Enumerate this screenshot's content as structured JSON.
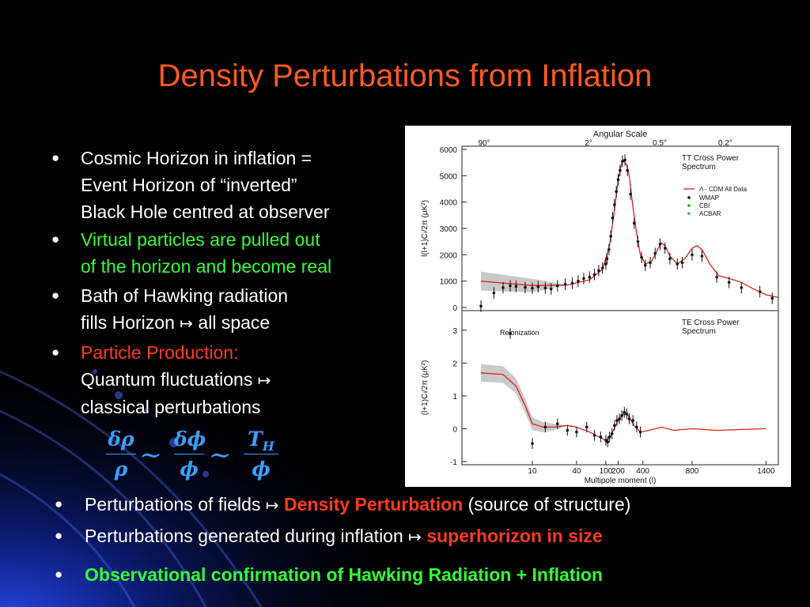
{
  "slide": {
    "title": "Density Perturbations from Inflation",
    "bullets": [
      {
        "lines": [
          "Cosmic Horizon in inflation =",
          "Event Horizon of  “inverted”",
          "Black Hole centred at observer"
        ],
        "color": "#ffffff"
      },
      {
        "lines": [
          "Virtual particles are pulled out",
          "of the horizon and become real"
        ],
        "color": "#33ff33"
      },
      {
        "lines": [
          "Bath of Hawking radiation",
          "fills Horizon",
          "all space"
        ],
        "color": "#ffffff"
      },
      {
        "line1": "Particle Production:",
        "line2": "Quantum fluctuations",
        "line3": "classical perturbations",
        "color1": "#ff3b1f",
        "color2": "#ffffff"
      }
    ],
    "arrow_symbol": "↦",
    "bullet_symbol": "●",
    "equation": {
      "f1_num": "δρ",
      "f1_den": "ρ",
      "tilde": "∼",
      "f2_num": "δϕ",
      "f2_den": "ϕ",
      "f3_num": "T",
      "f3_sub": "H",
      "f3_den": "ϕ"
    },
    "bottom": [
      {
        "pre": "Perturbations of fields",
        "highlight": "Density Perturbation",
        "post": "(source of structure)"
      },
      {
        "pre": "Perturbations generated during inflation",
        "highlight": "superhorizon in size"
      },
      {
        "text": "Observational confirmation of Hawking Radiation + Inflation"
      }
    ],
    "colors": {
      "title": "#ff5a1f",
      "red": "#ff3b1f",
      "green": "#33ff33",
      "blue": "#3aa0ff",
      "background": "#000000"
    }
  },
  "chart_data": [
    {
      "type": "scatter",
      "title": "TT Cross Power Spectrum",
      "top_axis_label": "Angular Scale",
      "top_ticks": [
        "90°",
        "2°",
        "0.5°",
        "0.2°"
      ],
      "ylabel": "l(l+1)Cₗ/2π (μK²)",
      "yticks": [
        0,
        1000,
        2000,
        3000,
        4000,
        5000,
        6000
      ],
      "ylim": [
        0,
        6000
      ],
      "legend": [
        "Λ - CDM All Data",
        "WMAP",
        "CBI",
        "ACBAR"
      ],
      "model_curve": [
        [
          2,
          1000
        ],
        [
          10,
          830
        ],
        [
          30,
          850
        ],
        [
          60,
          1050
        ],
        [
          90,
          1450
        ],
        [
          130,
          2350
        ],
        [
          170,
          3700
        ],
        [
          200,
          4850
        ],
        [
          230,
          5500
        ],
        [
          250,
          5550
        ],
        [
          270,
          5400
        ],
        [
          290,
          5000
        ],
        [
          320,
          3800
        ],
        [
          350,
          2800
        ],
        [
          380,
          2000
        ],
        [
          420,
          1650
        ],
        [
          470,
          1750
        ],
        [
          520,
          2200
        ],
        [
          550,
          2450
        ],
        [
          580,
          2350
        ],
        [
          620,
          1950
        ],
        [
          680,
          1650
        ],
        [
          740,
          1850
        ],
        [
          800,
          2250
        ],
        [
          840,
          2350
        ],
        [
          880,
          2200
        ],
        [
          950,
          1600
        ],
        [
          1020,
          1200
        ],
        [
          1100,
          1100
        ],
        [
          1200,
          950
        ],
        [
          1300,
          700
        ],
        [
          1400,
          480
        ],
        [
          1500,
          380
        ]
      ],
      "data_points": [
        [
          2,
          50
        ],
        [
          3,
          550
        ],
        [
          4,
          750
        ],
        [
          5,
          820
        ],
        [
          6,
          800
        ],
        [
          8,
          760
        ],
        [
          10,
          730
        ],
        [
          12,
          790
        ],
        [
          15,
          740
        ],
        [
          18,
          700
        ],
        [
          22,
          820
        ],
        [
          28,
          880
        ],
        [
          35,
          920
        ],
        [
          42,
          1000
        ],
        [
          50,
          1100
        ],
        [
          60,
          1150
        ],
        [
          70,
          1250
        ],
        [
          80,
          1400
        ],
        [
          90,
          1500
        ],
        [
          100,
          1650
        ],
        [
          110,
          1850
        ],
        [
          125,
          2200
        ],
        [
          140,
          2700
        ],
        [
          155,
          3400
        ],
        [
          170,
          3900
        ],
        [
          185,
          4400
        ],
        [
          200,
          4850
        ],
        [
          215,
          5200
        ],
        [
          235,
          5550
        ],
        [
          255,
          5600
        ],
        [
          275,
          5200
        ],
        [
          300,
          4300
        ],
        [
          330,
          3200
        ],
        [
          360,
          2500
        ],
        [
          390,
          1900
        ],
        [
          420,
          1600
        ],
        [
          460,
          1700
        ],
        [
          500,
          2050
        ],
        [
          540,
          2400
        ],
        [
          580,
          2250
        ],
        [
          620,
          1850
        ],
        [
          680,
          1650
        ],
        [
          720,
          1700
        ],
        [
          800,
          2000
        ],
        [
          880,
          1950
        ],
        [
          1000,
          1150
        ],
        [
          1100,
          950
        ],
        [
          1200,
          750
        ],
        [
          1350,
          600
        ],
        [
          1450,
          350
        ]
      ]
    },
    {
      "type": "scatter",
      "title": "TE Cross Power Spectrum",
      "annotation": "Reionization",
      "xlabel": "Multipole moment (l)",
      "xticks": [
        "10",
        "40",
        "100",
        "200",
        "400",
        "800",
        "1400"
      ],
      "ylabel": "(l+1)Cₗ/2π (μK²)",
      "yticks": [
        -1,
        0,
        1,
        2,
        3
      ],
      "ylim": [
        -1,
        3.5
      ],
      "model_curve": [
        [
          2,
          1.7
        ],
        [
          4,
          1.65
        ],
        [
          6,
          1.3
        ],
        [
          8,
          0.7
        ],
        [
          10,
          0.15
        ],
        [
          14,
          0.05
        ],
        [
          20,
          0.05
        ],
        [
          30,
          0.1
        ],
        [
          40,
          0.05
        ],
        [
          60,
          -0.1
        ],
        [
          80,
          -0.25
        ],
        [
          100,
          -0.35
        ],
        [
          130,
          -0.3
        ],
        [
          160,
          -0.05
        ],
        [
          200,
          0.25
        ],
        [
          240,
          0.45
        ],
        [
          280,
          0.4
        ],
        [
          330,
          0.1
        ],
        [
          380,
          -0.1
        ],
        [
          450,
          -0.05
        ],
        [
          550,
          0.05
        ],
        [
          650,
          -0.05
        ],
        [
          800,
          0
        ],
        [
          1000,
          -0.05
        ],
        [
          1400,
          0
        ]
      ],
      "data_points": [
        [
          5,
          2.9
        ],
        [
          10,
          -0.45
        ],
        [
          15,
          0.05
        ],
        [
          22,
          0.15
        ],
        [
          30,
          -0.05
        ],
        [
          40,
          -0.1
        ],
        [
          55,
          0.05
        ],
        [
          70,
          -0.2
        ],
        [
          85,
          -0.25
        ],
        [
          100,
          -0.35
        ],
        [
          115,
          -0.4
        ],
        [
          130,
          -0.25
        ],
        [
          150,
          -0.15
        ],
        [
          170,
          0.1
        ],
        [
          190,
          0.25
        ],
        [
          210,
          0.3
        ],
        [
          230,
          0.4
        ],
        [
          250,
          0.5
        ],
        [
          270,
          0.45
        ],
        [
          290,
          0.3
        ],
        [
          320,
          0.25
        ],
        [
          350,
          0.05
        ],
        [
          380,
          -0.1
        ]
      ]
    }
  ]
}
